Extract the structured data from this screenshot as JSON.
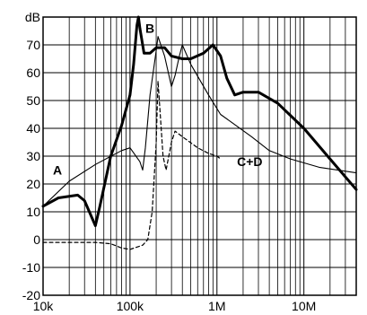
{
  "chart_data": {
    "type": "line",
    "xscale": "log",
    "xlim": [
      10000,
      40000000
    ],
    "ylim": [
      -20,
      80
    ],
    "grid": true,
    "y_unit_label": "dB",
    "y_ticks": [
      80,
      70,
      60,
      50,
      40,
      30,
      20,
      10,
      0,
      -10,
      -20
    ],
    "y_tick_labels": [
      "dB",
      "70",
      "60",
      "50",
      "40",
      "30",
      "20",
      "10",
      "0",
      "-10",
      "-20"
    ],
    "x_ticks": [
      10000,
      100000,
      1000000,
      10000000
    ],
    "x_tick_labels": [
      "10k",
      "100k",
      "1M",
      "10M"
    ],
    "series": [
      {
        "name": "A",
        "style": "thin",
        "points": [
          [
            10000,
            12
          ],
          [
            20000,
            21
          ],
          [
            40000,
            27
          ],
          [
            80000,
            32
          ],
          [
            100000,
            33
          ],
          [
            130000,
            28
          ],
          [
            140000,
            25
          ],
          [
            150000,
            33
          ],
          [
            170000,
            52
          ],
          [
            200000,
            68
          ],
          [
            210000,
            73
          ],
          [
            250000,
            66
          ],
          [
            300000,
            55
          ],
          [
            330000,
            59
          ],
          [
            370000,
            66
          ],
          [
            400000,
            70
          ],
          [
            500000,
            63
          ],
          [
            800000,
            52
          ],
          [
            1100000,
            45
          ],
          [
            1500000,
            42
          ],
          [
            2500000,
            37
          ],
          [
            4000000,
            32
          ],
          [
            7000000,
            29
          ],
          [
            15000000,
            26
          ],
          [
            40000000,
            24
          ]
        ]
      },
      {
        "name": "B",
        "style": "thick",
        "points": [
          [
            10000,
            12
          ],
          [
            15000,
            15
          ],
          [
            25000,
            16
          ],
          [
            30000,
            14
          ],
          [
            40000,
            5
          ],
          [
            45000,
            12
          ],
          [
            60000,
            30
          ],
          [
            80000,
            41
          ],
          [
            100000,
            52
          ],
          [
            110000,
            63
          ],
          [
            120000,
            77
          ],
          [
            125000,
            80
          ],
          [
            130000,
            76
          ],
          [
            145000,
            67
          ],
          [
            170000,
            67
          ],
          [
            200000,
            69
          ],
          [
            250000,
            69
          ],
          [
            300000,
            66
          ],
          [
            400000,
            65
          ],
          [
            500000,
            65
          ],
          [
            700000,
            67
          ],
          [
            900000,
            70
          ],
          [
            1100000,
            66
          ],
          [
            1300000,
            58
          ],
          [
            1600000,
            52
          ],
          [
            2000000,
            53
          ],
          [
            3000000,
            53
          ],
          [
            5000000,
            49
          ],
          [
            10000000,
            40
          ],
          [
            20000000,
            29
          ],
          [
            40000000,
            18
          ]
        ]
      },
      {
        "name": "C+D",
        "style": "dashed",
        "points": [
          [
            10000,
            -1
          ],
          [
            40000,
            -1
          ],
          [
            60000,
            -1.5
          ],
          [
            80000,
            -3
          ],
          [
            100000,
            -3.5
          ],
          [
            140000,
            -2
          ],
          [
            160000,
            0
          ],
          [
            180000,
            10
          ],
          [
            200000,
            35
          ],
          [
            210000,
            57
          ],
          [
            240000,
            30
          ],
          [
            260000,
            25
          ],
          [
            300000,
            35
          ],
          [
            330000,
            39
          ],
          [
            400000,
            37
          ],
          [
            600000,
            33
          ],
          [
            800000,
            31
          ],
          [
            1000000,
            30
          ],
          [
            1100000,
            29
          ]
        ]
      }
    ],
    "annotations": [
      {
        "text": "A",
        "x": 13000,
        "y": 25
      },
      {
        "text": "B",
        "x": 150000,
        "y": 76
      },
      {
        "text": "C+D",
        "x": 1700000,
        "y": 28
      }
    ]
  }
}
